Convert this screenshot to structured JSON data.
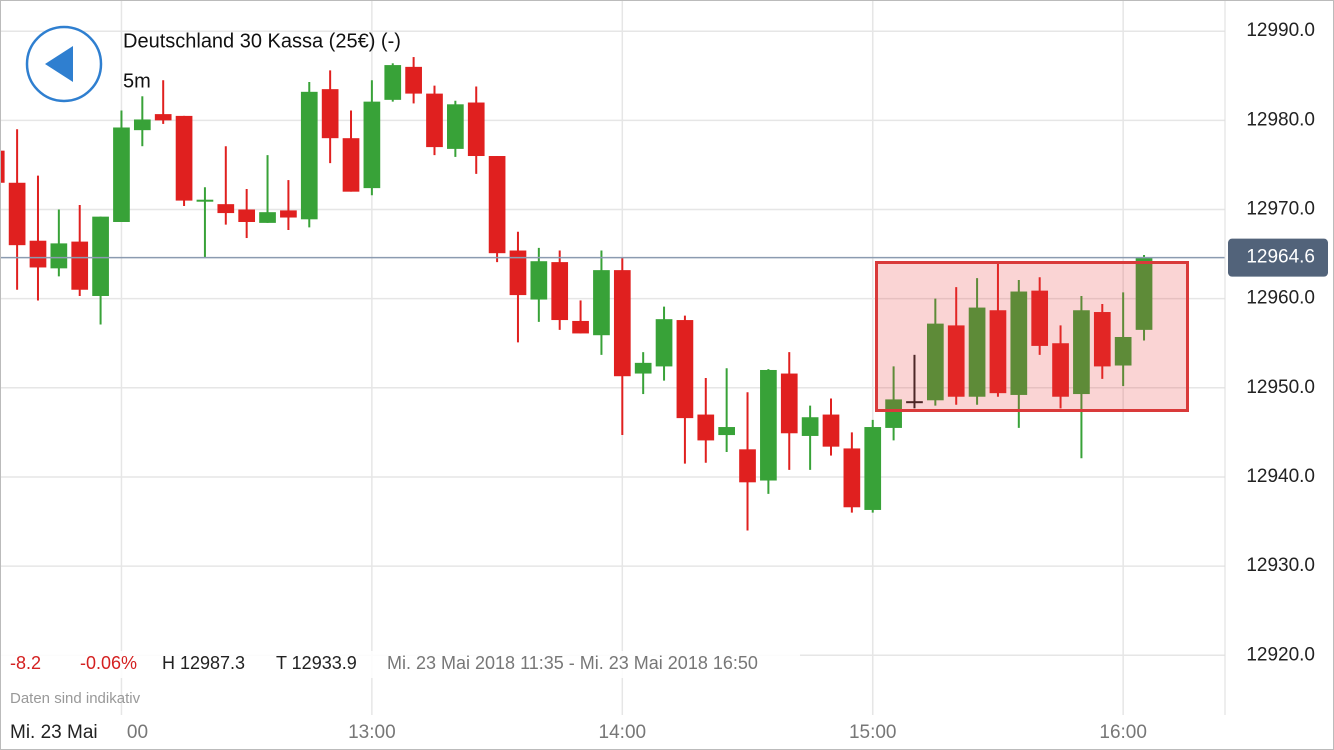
{
  "chart_data": {
    "type": "candlestick",
    "title": "Deutschland 30 Kassa (25€) (-)",
    "subtitle": "5m",
    "stats": [
      "-8.2",
      "-0.06%",
      "H 12987.3",
      "T 12933.9",
      "Mi. 23 Mai 2018 11:35 - Mi. 23 Mai 2018 16:50"
    ],
    "note": "Daten sind indikativ",
    "date_label": "Mi. 23 Mai",
    "x": [
      690,
      695,
      700,
      705,
      710,
      715,
      720,
      725,
      730,
      735,
      740,
      745,
      750,
      755,
      760,
      765,
      770,
      775,
      780,
      785,
      790,
      795,
      800,
      805,
      810,
      815,
      820,
      825,
      830,
      835,
      840,
      845,
      850,
      855,
      860,
      865,
      870,
      875,
      880,
      885,
      890,
      895,
      900,
      905,
      910,
      915,
      920,
      925,
      930,
      935,
      940,
      945,
      950,
      955,
      960,
      965
    ],
    "open": [
      12976.6,
      12973,
      12966.5,
      12963.4,
      12966.4,
      12960.3,
      12968.6,
      12978.9,
      12980.7,
      12980.5,
      12970.9,
      12970.6,
      12970,
      12968.5,
      12969.9,
      12968.9,
      12983.5,
      12978,
      12972.4,
      12982.3,
      12986,
      12983,
      12976.8,
      12982,
      12976,
      12965.4,
      12959.9,
      12964.1,
      12957.5,
      12955.9,
      12963.2,
      12951.6,
      12952.4,
      12957.6,
      12947,
      12944.7,
      12943.1,
      12939.6,
      12951.6,
      12944.6,
      12947,
      12943.2,
      12936.3,
      12945.5,
      12948.5,
      12948.6,
      12957,
      12949,
      12958.7,
      12949.2,
      12960.9,
      12955,
      12949.3,
      12958.5,
      12952.5,
      12956.5
    ],
    "high": [
      12976.6,
      12979,
      12973.8,
      12970,
      12970.5,
      12969.2,
      12981.1,
      12982.7,
      12984.5,
      12980.5,
      12972.5,
      12977.1,
      12972.3,
      12976.1,
      12973.3,
      12984.3,
      12985.6,
      12981.1,
      12984.5,
      12986.4,
      12987.1,
      12983.9,
      12982.2,
      12983.8,
      12976,
      12967.5,
      12965.7,
      12965.4,
      12959.8,
      12965.4,
      12964.6,
      12954,
      12959.1,
      12958.1,
      12951.1,
      12952.2,
      12949.5,
      12952.1,
      12954,
      12948,
      12948.8,
      12945,
      12946.4,
      12952.4,
      12953.7,
      12960,
      12961.3,
      12962.3,
      12964.1,
      12962.1,
      12962.4,
      12957,
      12960.3,
      12959.4,
      12960.7,
      12964.9
    ],
    "low": [
      12973,
      12961,
      12959.8,
      12962.5,
      12960.3,
      12957.1,
      12968.6,
      12977.1,
      12979.6,
      12970.4,
      12964.6,
      12968.3,
      12966.8,
      12968.5,
      12967.7,
      12968,
      12975.2,
      12972,
      12971.6,
      12982.1,
      12981.9,
      12976.1,
      12975.9,
      12974,
      12964.1,
      12955.1,
      12957.4,
      12956.5,
      12956.1,
      12953.7,
      12944.7,
      12949.3,
      12950.8,
      12941.5,
      12941.6,
      12942.8,
      12934,
      12938.1,
      12940.8,
      12940.8,
      12942.4,
      12936,
      12936,
      12944.1,
      12947.7,
      12948,
      12948.1,
      12948.1,
      12949,
      12945.5,
      12953.7,
      12947.7,
      12942.1,
      12951,
      12950.2,
      12955.3
    ],
    "close": [
      12973,
      12966,
      12963.5,
      12966.2,
      12961,
      12969.2,
      12979.2,
      12980.1,
      12980,
      12971,
      12971.1,
      12969.6,
      12968.6,
      12969.7,
      12969.1,
      12983.2,
      12978,
      12972,
      12982.1,
      12986.2,
      12983,
      12977,
      12981.8,
      12976,
      12965.1,
      12960.4,
      12964.2,
      12957.6,
      12956.1,
      12963.2,
      12951.3,
      12952.8,
      12957.7,
      12946.6,
      12944.1,
      12945.6,
      12939.4,
      12952,
      12944.9,
      12946.7,
      12943.4,
      12936.6,
      12945.6,
      12948.7,
      12948.5,
      12957.2,
      12949,
      12959,
      12949.4,
      12960.8,
      12954.7,
      12949,
      12958.7,
      12952.4,
      12955.7,
      12964.6
    ],
    "up_color": "#38a238",
    "down_color": "#e0201f",
    "doji_color": "#222222",
    "last_price": 12964.6,
    "xlim": [
      690.9,
      984.4
    ],
    "xticks": [
      {
        "value": 720,
        "label": "00"
      },
      {
        "value": 780,
        "label": "13:00"
      },
      {
        "value": 840,
        "label": "14:00"
      },
      {
        "value": 900,
        "label": "15:00"
      },
      {
        "value": 960,
        "label": "16:00"
      }
    ],
    "ylim": [
      12913.3,
      12993.5
    ],
    "yticks": [
      {
        "value": 12920,
        "label": "12920.0"
      },
      {
        "value": 12930,
        "label": "12930.0"
      },
      {
        "value": 12940,
        "label": "12940.0"
      },
      {
        "value": 12950,
        "label": "12950.0"
      },
      {
        "value": 12960,
        "label": "12960.0"
      },
      {
        "value": 12970,
        "label": "12970.0"
      },
      {
        "value": 12980,
        "label": "12980.0"
      },
      {
        "value": 12990,
        "label": "12990.0"
      }
    ],
    "grid": true
  }
}
